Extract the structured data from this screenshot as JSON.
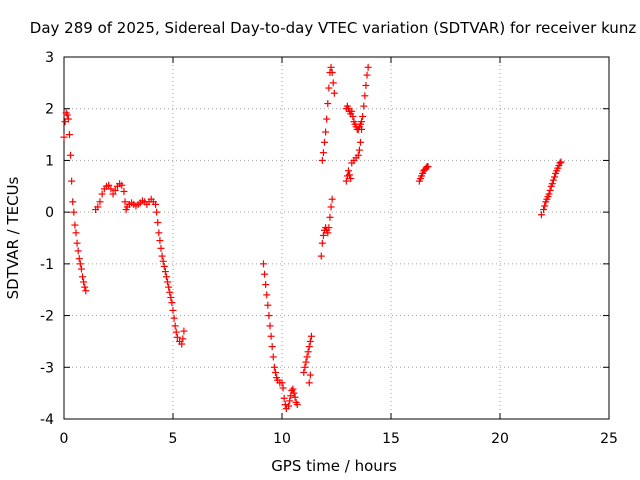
{
  "chart_data": {
    "type": "scatter",
    "title": "Day 289 of 2025, Sidereal Day-to-day VTEC variation (SDTVAR) for receiver kunz",
    "xlabel": "GPS time / hours",
    "ylabel": "SDTVAR / TECUs",
    "xlim": [
      0,
      25
    ],
    "ylim": [
      -4,
      3
    ],
    "xticks": [
      "0",
      "5",
      "10",
      "15",
      "20",
      "25"
    ],
    "yticks": [
      "-4",
      "-3",
      "-2",
      "-1",
      "0",
      "1",
      "2",
      "3"
    ],
    "grid": true,
    "marker": "+",
    "series": [
      {
        "name": "kunz",
        "color": "#ff0000",
        "segments": [
          [
            [
              0.0,
              1.45
            ],
            [
              0.05,
              1.75
            ],
            [
              0.1,
              1.92
            ],
            [
              0.15,
              1.88
            ],
            [
              0.2,
              1.8
            ],
            [
              0.25,
              1.5
            ],
            [
              0.3,
              1.1
            ],
            [
              0.35,
              0.6
            ],
            [
              0.4,
              0.2
            ],
            [
              0.45,
              0.0
            ],
            [
              0.5,
              -0.25
            ],
            [
              0.55,
              -0.4
            ],
            [
              0.6,
              -0.6
            ],
            [
              0.65,
              -0.75
            ],
            [
              0.7,
              -0.9
            ],
            [
              0.75,
              -1.0
            ],
            [
              0.8,
              -1.1
            ],
            [
              0.85,
              -1.25
            ],
            [
              0.9,
              -1.35
            ],
            [
              0.95,
              -1.45
            ],
            [
              1.0,
              -1.52
            ]
          ],
          [
            [
              1.45,
              0.05
            ],
            [
              1.55,
              0.1
            ],
            [
              1.65,
              0.2
            ],
            [
              1.75,
              0.35
            ],
            [
              1.85,
              0.45
            ],
            [
              1.95,
              0.5
            ],
            [
              2.05,
              0.52
            ],
            [
              2.15,
              0.45
            ],
            [
              2.25,
              0.35
            ],
            [
              2.35,
              0.42
            ],
            [
              2.45,
              0.5
            ],
            [
              2.55,
              0.55
            ],
            [
              2.65,
              0.52
            ],
            [
              2.75,
              0.4
            ],
            [
              2.8,
              0.2
            ],
            [
              2.85,
              0.05
            ],
            [
              2.9,
              0.1
            ],
            [
              3.0,
              0.15
            ],
            [
              3.1,
              0.18
            ],
            [
              3.2,
              0.15
            ],
            [
              3.3,
              0.12
            ],
            [
              3.4,
              0.15
            ],
            [
              3.5,
              0.18
            ],
            [
              3.6,
              0.22
            ],
            [
              3.7,
              0.2
            ],
            [
              3.8,
              0.15
            ],
            [
              3.9,
              0.2
            ],
            [
              4.0,
              0.25
            ],
            [
              4.1,
              0.2
            ],
            [
              4.2,
              0.15
            ],
            [
              4.25,
              0.0
            ],
            [
              4.3,
              -0.2
            ],
            [
              4.35,
              -0.4
            ],
            [
              4.4,
              -0.55
            ],
            [
              4.45,
              -0.7
            ],
            [
              4.5,
              -0.85
            ],
            [
              4.55,
              -0.95
            ],
            [
              4.6,
              -1.05
            ],
            [
              4.65,
              -1.15
            ],
            [
              4.7,
              -1.25
            ],
            [
              4.75,
              -1.35
            ],
            [
              4.8,
              -1.45
            ],
            [
              4.85,
              -1.55
            ],
            [
              4.9,
              -1.65
            ],
            [
              4.95,
              -1.75
            ],
            [
              5.0,
              -1.9
            ],
            [
              5.05,
              -2.05
            ],
            [
              5.1,
              -2.2
            ],
            [
              5.15,
              -2.32
            ],
            [
              5.2,
              -2.42
            ],
            [
              5.3,
              -2.5
            ],
            [
              5.4,
              -2.55
            ],
            [
              5.45,
              -2.45
            ],
            [
              5.5,
              -2.3
            ]
          ],
          [
            [
              9.15,
              -1.0
            ],
            [
              9.2,
              -1.2
            ],
            [
              9.25,
              -1.4
            ],
            [
              9.3,
              -1.6
            ],
            [
              9.35,
              -1.8
            ],
            [
              9.4,
              -2.0
            ],
            [
              9.45,
              -2.2
            ],
            [
              9.5,
              -2.4
            ],
            [
              9.55,
              -2.6
            ],
            [
              9.6,
              -2.8
            ],
            [
              9.65,
              -3.0
            ],
            [
              9.7,
              -3.1
            ],
            [
              9.75,
              -3.2
            ],
            [
              9.8,
              -3.25
            ],
            [
              9.9,
              -3.3
            ],
            [
              10.0,
              -3.3
            ],
            [
              10.05,
              -3.4
            ],
            [
              10.1,
              -3.6
            ],
            [
              10.15,
              -3.72
            ],
            [
              10.2,
              -3.8
            ],
            [
              10.3,
              -3.75
            ],
            [
              10.35,
              -3.65
            ],
            [
              10.4,
              -3.55
            ],
            [
              10.45,
              -3.45
            ],
            [
              10.5,
              -3.42
            ],
            [
              10.55,
              -3.5
            ],
            [
              10.6,
              -3.58
            ],
            [
              10.65,
              -3.68
            ],
            [
              10.7,
              -3.72
            ]
          ],
          [
            [
              11.0,
              -3.1
            ],
            [
              11.05,
              -3.0
            ],
            [
              11.1,
              -2.9
            ],
            [
              11.15,
              -2.8
            ],
            [
              11.2,
              -2.7
            ],
            [
              11.25,
              -2.6
            ],
            [
              11.3,
              -2.5
            ],
            [
              11.35,
              -2.4
            ],
            [
              11.25,
              -3.3
            ],
            [
              11.3,
              -3.15
            ]
          ],
          [
            [
              11.8,
              -0.85
            ],
            [
              11.85,
              -0.6
            ],
            [
              11.9,
              -0.45
            ],
            [
              11.95,
              -0.35
            ],
            [
              12.0,
              -0.3
            ],
            [
              12.05,
              -0.35
            ],
            [
              12.1,
              -0.4
            ],
            [
              12.15,
              -0.3
            ],
            [
              12.2,
              -0.1
            ],
            [
              12.25,
              0.1
            ],
            [
              12.3,
              0.25
            ]
          ],
          [
            [
              11.85,
              1.0
            ],
            [
              11.9,
              1.15
            ],
            [
              11.95,
              1.35
            ],
            [
              12.0,
              1.55
            ],
            [
              12.05,
              1.8
            ],
            [
              12.1,
              2.1
            ],
            [
              12.15,
              2.4
            ],
            [
              12.2,
              2.7
            ],
            [
              12.25,
              2.8
            ],
            [
              12.3,
              2.7
            ],
            [
              12.35,
              2.5
            ],
            [
              12.4,
              2.3
            ]
          ],
          [
            [
              12.95,
              0.6
            ],
            [
              13.0,
              0.7
            ],
            [
              13.05,
              0.8
            ],
            [
              13.1,
              0.72
            ],
            [
              13.15,
              0.65
            ],
            [
              12.95,
              2.0
            ],
            [
              13.0,
              2.05
            ],
            [
              13.05,
              2.0
            ],
            [
              13.1,
              1.95
            ],
            [
              13.15,
              1.9
            ],
            [
              13.2,
              1.95
            ],
            [
              13.25,
              1.85
            ],
            [
              13.3,
              1.75
            ],
            [
              13.35,
              1.7
            ],
            [
              13.4,
              1.65
            ],
            [
              13.45,
              1.6
            ],
            [
              13.5,
              1.6
            ],
            [
              13.55,
              1.65
            ],
            [
              13.6,
              1.7
            ],
            [
              13.65,
              1.75
            ]
          ],
          [
            [
              13.2,
              0.95
            ],
            [
              13.3,
              1.0
            ],
            [
              13.4,
              1.05
            ],
            [
              13.5,
              1.1
            ],
            [
              13.55,
              1.2
            ],
            [
              13.6,
              1.35
            ],
            [
              13.65,
              1.6
            ],
            [
              13.7,
              1.85
            ],
            [
              13.75,
              2.05
            ],
            [
              13.8,
              2.25
            ],
            [
              13.85,
              2.45
            ],
            [
              13.9,
              2.65
            ],
            [
              13.95,
              2.8
            ]
          ],
          [
            [
              16.3,
              0.6
            ],
            [
              16.35,
              0.65
            ],
            [
              16.4,
              0.7
            ],
            [
              16.45,
              0.75
            ],
            [
              16.5,
              0.8
            ],
            [
              16.55,
              0.82
            ],
            [
              16.6,
              0.85
            ],
            [
              16.65,
              0.88
            ],
            [
              16.7,
              0.88
            ]
          ],
          [
            [
              21.9,
              -0.05
            ],
            [
              22.0,
              0.05
            ],
            [
              22.05,
              0.12
            ],
            [
              22.1,
              0.2
            ],
            [
              22.15,
              0.25
            ],
            [
              22.2,
              0.3
            ],
            [
              22.25,
              0.35
            ],
            [
              22.3,
              0.42
            ],
            [
              22.35,
              0.5
            ],
            [
              22.4,
              0.55
            ],
            [
              22.45,
              0.62
            ],
            [
              22.5,
              0.68
            ],
            [
              22.55,
              0.75
            ],
            [
              22.6,
              0.8
            ],
            [
              22.65,
              0.85
            ],
            [
              22.7,
              0.9
            ],
            [
              22.75,
              0.95
            ],
            [
              22.8,
              0.97
            ]
          ]
        ]
      }
    ]
  }
}
